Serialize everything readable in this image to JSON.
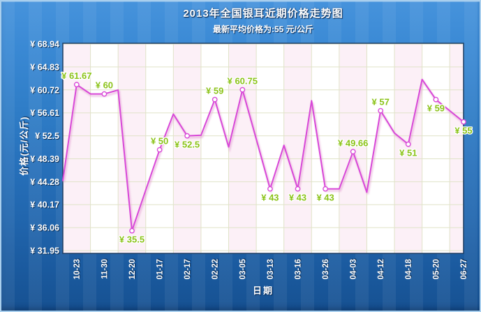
{
  "header": {
    "title": "2013年全国银耳近期价格走势图",
    "subtitle": "最新平均价格为:55 元/公斤"
  },
  "chart_data": {
    "type": "line",
    "title": "2013年全国银耳近期价格走势图",
    "subtitle": "最新平均价格为:55 元/公斤",
    "xlabel": "日期",
    "ylabel": "价格(元/公斤)",
    "currency_prefix": "¥ ",
    "legend": "none",
    "grid": true,
    "marker": "circle",
    "x_tick_rotation": -90,
    "ylim": [
      31.45,
      69.07
    ],
    "y_ticks": [
      31.95,
      36.06,
      40.17,
      44.28,
      48.39,
      52.5,
      56.61,
      60.72,
      64.83,
      68.94
    ],
    "x_tick_labels": [
      "10-23",
      "11-30",
      "12-20",
      "01-17",
      "02-17",
      "02-22",
      "03-05",
      "03-13",
      "03-16",
      "03-26",
      "04-03",
      "04-12",
      "04-18",
      "05-20",
      "06-27"
    ],
    "points": [
      {
        "date": null,
        "value": 44.5,
        "labeled": false
      },
      {
        "date": "10-23",
        "value": 61.67,
        "labeled": true,
        "label_pos": "above"
      },
      {
        "date": null,
        "value": 60,
        "labeled": false
      },
      {
        "date": "11-30",
        "value": 60,
        "labeled": true,
        "label_pos": "above"
      },
      {
        "date": null,
        "value": 60.7,
        "labeled": false
      },
      {
        "date": "12-20",
        "value": 35.5,
        "labeled": true,
        "label_pos": "below"
      },
      {
        "date": null,
        "value": 42.8,
        "labeled": false
      },
      {
        "date": "01-17",
        "value": 50,
        "labeled": true,
        "label_pos": "above"
      },
      {
        "date": null,
        "value": 56.4,
        "labeled": false
      },
      {
        "date": "02-17",
        "value": 52.5,
        "labeled": true,
        "label_pos": "below"
      },
      {
        "date": null,
        "value": 52.6,
        "labeled": false
      },
      {
        "date": "02-22",
        "value": 59,
        "labeled": true,
        "label_pos": "above"
      },
      {
        "date": null,
        "value": 50.5,
        "labeled": false
      },
      {
        "date": "03-05",
        "value": 60.75,
        "labeled": true,
        "label_pos": "above"
      },
      {
        "date": null,
        "value": 51.9,
        "labeled": false
      },
      {
        "date": "03-13",
        "value": 43,
        "labeled": true,
        "label_pos": "below"
      },
      {
        "date": null,
        "value": 50.8,
        "labeled": false
      },
      {
        "date": "03-16",
        "value": 43,
        "labeled": true,
        "label_pos": "below"
      },
      {
        "date": null,
        "value": 58.8,
        "labeled": false
      },
      {
        "date": "03-26",
        "value": 43,
        "labeled": true,
        "label_pos": "below"
      },
      {
        "date": null,
        "value": 43,
        "labeled": false
      },
      {
        "date": "04-03",
        "value": 49.66,
        "labeled": true,
        "label_pos": "above"
      },
      {
        "date": null,
        "value": 42.4,
        "labeled": false
      },
      {
        "date": "04-12",
        "value": 57,
        "labeled": true,
        "label_pos": "above"
      },
      {
        "date": null,
        "value": 53,
        "labeled": false
      },
      {
        "date": "04-18",
        "value": 51,
        "labeled": true,
        "label_pos": "below"
      },
      {
        "date": null,
        "value": 62.6,
        "labeled": false
      },
      {
        "date": "05-20",
        "value": 59,
        "labeled": true,
        "label_pos": "below"
      },
      {
        "date": null,
        "value": 57,
        "labeled": false
      },
      {
        "date": "06-27",
        "value": 55,
        "labeled": true,
        "label_pos": "below"
      }
    ]
  },
  "colors": {
    "line": "#d848d8",
    "line_shadow": "rgba(226,150,208,0.5)",
    "marker_fill": "#ffffff",
    "data_label": "#8bc318",
    "plot_bg": "#ffffff",
    "plot_band": "#fcf0f7",
    "grid": "#e0e3c8",
    "plot_border": "#203f63",
    "bg_top": "#4693dc",
    "bg_bottom": "#165192",
    "text": "#ffffff"
  }
}
